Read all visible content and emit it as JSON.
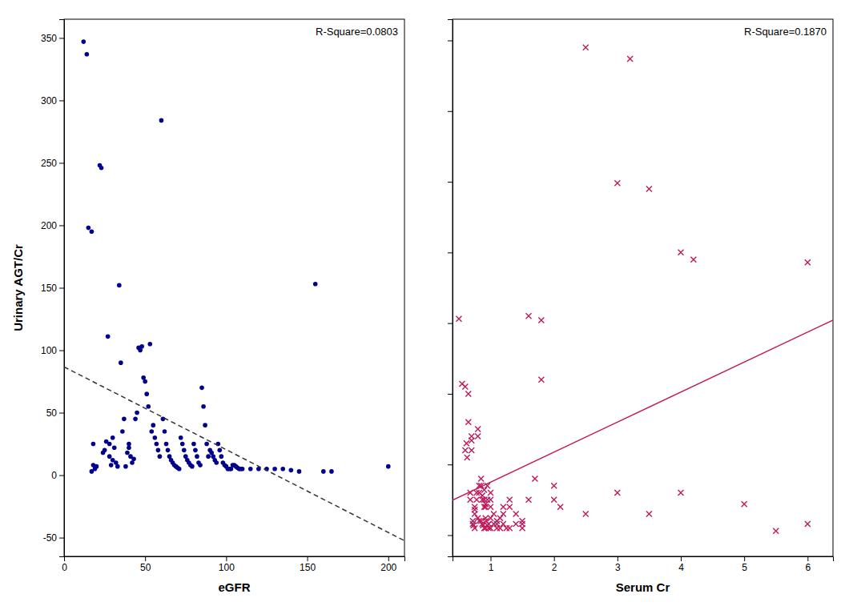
{
  "chart_data": [
    {
      "type": "scatter",
      "x_label": "eGFR",
      "y_label": "Urinary AGT/Cr",
      "annotation": "R-Square=0.0803",
      "xlim": [
        0,
        210
      ],
      "ylim": [
        -65,
        365
      ],
      "xticks": [
        0,
        50,
        100,
        150,
        200
      ],
      "yticks": [
        -50,
        0,
        50,
        100,
        150,
        200,
        250,
        300,
        350
      ],
      "series": [
        {
          "type": "scatter",
          "color": "#00008B",
          "marker": "circle",
          "x": [
            12,
            14,
            15,
            17,
            17,
            18,
            18,
            19,
            20,
            22,
            23,
            24,
            25,
            26,
            27,
            28,
            28,
            29,
            30,
            30,
            31,
            32,
            33,
            34,
            35,
            36,
            37,
            38,
            39,
            40,
            40,
            41,
            42,
            43,
            44,
            45,
            46,
            47,
            48,
            49,
            50,
            51,
            52,
            53,
            54,
            55,
            56,
            57,
            58,
            59,
            60,
            61,
            62,
            63,
            64,
            65,
            66,
            67,
            68,
            69,
            70,
            71,
            72,
            73,
            74,
            75,
            76,
            77,
            78,
            79,
            80,
            81,
            82,
            83,
            84,
            85,
            86,
            87,
            88,
            89,
            90,
            91,
            92,
            93,
            94,
            95,
            96,
            97,
            98,
            99,
            100,
            101,
            102,
            103,
            104,
            105,
            106,
            107,
            108,
            109,
            110,
            115,
            120,
            125,
            130,
            135,
            140,
            145,
            155,
            160,
            165,
            200
          ],
          "values": [
            347,
            337,
            198,
            195,
            3,
            25,
            8,
            5,
            7,
            248,
            246,
            18,
            20,
            27,
            111,
            25,
            15,
            8,
            30,
            12,
            22,
            10,
            7,
            152,
            90,
            35,
            45,
            7,
            18,
            25,
            22,
            15,
            10,
            13,
            45,
            50,
            102,
            100,
            103,
            78,
            75,
            65,
            55,
            105,
            35,
            40,
            30,
            25,
            20,
            15,
            284,
            45,
            35,
            25,
            20,
            15,
            12,
            10,
            8,
            7,
            6,
            5,
            30,
            25,
            20,
            15,
            12,
            10,
            8,
            7,
            25,
            20,
            15,
            10,
            8,
            70,
            55,
            40,
            25,
            15,
            20,
            18,
            15,
            12,
            10,
            25,
            20,
            15,
            10,
            8,
            7,
            5,
            5,
            5,
            8,
            8,
            7,
            6,
            5,
            5,
            5,
            5,
            5,
            5,
            5,
            5,
            4,
            3,
            153,
            3,
            3,
            7
          ]
        },
        {
          "type": "line",
          "color": "#333333",
          "line_style": "dashed",
          "x": [
            0,
            210
          ],
          "values": [
            86.6825,
            -52.4762
          ]
        }
      ]
    },
    {
      "type": "scatter",
      "x_label": "Serum Cr",
      "annotation": "R-Square=0.1870",
      "xlim": [
        0.4,
        6.4
      ],
      "ylim": [
        -15,
        365
      ],
      "xticks": [
        1,
        2,
        3,
        4,
        5,
        6
      ],
      "yticks": [
        0,
        50,
        100,
        150,
        200,
        250,
        300,
        350
      ],
      "tick_labels": "x",
      "series": [
        {
          "type": "scatter",
          "color": "#C2185B",
          "marker": "x",
          "x": [
            0.5,
            0.55,
            0.6,
            0.6,
            0.62,
            0.63,
            0.65,
            0.65,
            0.68,
            0.68,
            0.7,
            0.7,
            0.7,
            0.72,
            0.72,
            0.73,
            0.75,
            0.75,
            0.75,
            0.75,
            0.78,
            0.78,
            0.8,
            0.8,
            0.8,
            0.82,
            0.82,
            0.82,
            0.85,
            0.85,
            0.85,
            0.87,
            0.87,
            0.87,
            0.88,
            0.9,
            0.9,
            0.9,
            0.9,
            0.92,
            0.92,
            0.92,
            0.92,
            0.93,
            0.95,
            0.95,
            0.95,
            0.97,
            0.97,
            1.0,
            1.0,
            1.0,
            1.0,
            1.0,
            1.05,
            1.05,
            1.1,
            1.1,
            1.1,
            1.15,
            1.15,
            1.2,
            1.2,
            1.2,
            1.25,
            1.3,
            1.3,
            1.3,
            1.4,
            1.4,
            1.5,
            1.5,
            1.5,
            1.6,
            1.6,
            1.7,
            1.8,
            1.8,
            2.0,
            2.0,
            2.1,
            2.5,
            2.5,
            3.0,
            3.0,
            3.2,
            3.5,
            3.5,
            4.0,
            4.0,
            4.2,
            5.0,
            5.5,
            6.0,
            6.0
          ],
          "values": [
            153,
            107,
            105,
            60,
            65,
            55,
            100,
            80,
            30,
            25,
            70,
            67,
            60,
            10,
            8,
            7,
            20,
            18,
            15,
            5,
            30,
            25,
            75,
            70,
            12,
            35,
            30,
            10,
            40,
            35,
            10,
            28,
            25,
            8,
            7,
            32,
            25,
            20,
            5,
            22,
            20,
            12,
            5,
            10,
            35,
            25,
            7,
            8,
            5,
            30,
            25,
            20,
            12,
            5,
            15,
            8,
            10,
            8,
            5,
            12,
            5,
            20,
            15,
            8,
            5,
            25,
            20,
            5,
            15,
            8,
            10,
            8,
            5,
            155,
            25,
            40,
            110,
            152,
            35,
            25,
            20,
            345,
            15,
            249,
            30,
            337,
            245,
            15,
            200,
            30,
            195,
            22,
            3,
            193,
            8
          ]
        },
        {
          "type": "line",
          "color": "#C2185B",
          "line_style": "solid",
          "x": [
            0.4,
            6.4
          ],
          "values": [
            24.7677,
            152.1535
          ]
        }
      ]
    }
  ]
}
